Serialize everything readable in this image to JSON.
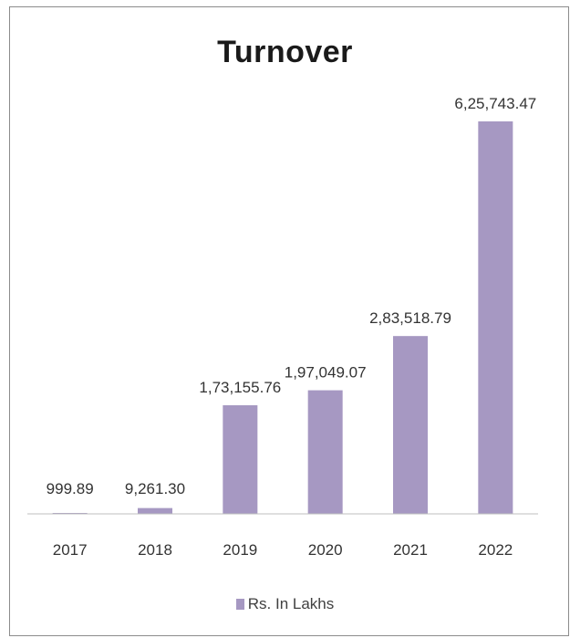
{
  "chart_data": {
    "type": "bar",
    "title": "Turnover",
    "categories": [
      "2017",
      "2018",
      "2019",
      "2020",
      "2021",
      "2022"
    ],
    "series": [
      {
        "name": "Rs. In Lakhs",
        "values": [
          999.89,
          9261.3,
          173155.76,
          197049.07,
          283518.79,
          625743.47
        ],
        "data_labels": [
          "999.89",
          "9,261.30",
          "1,73,155.76",
          "1,97,049.07",
          "2,83,518.79",
          "6,25,743.47"
        ]
      }
    ],
    "xlabel": "",
    "ylabel": "",
    "ylim": [
      0,
      700000
    ],
    "grid": false,
    "legend_position": "bottom",
    "colors": {
      "bar": "#a698c2",
      "axis": "#bfbfbf",
      "text": "#333333"
    }
  }
}
